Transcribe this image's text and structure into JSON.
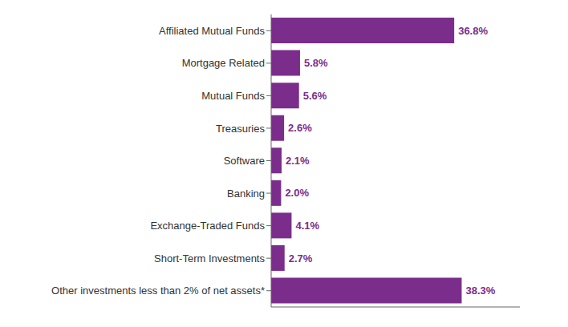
{
  "chart_data": {
    "type": "bar",
    "orientation": "horizontal",
    "categories": [
      "Other investments less than 2% of net assets*",
      "Short-Term Investments",
      "Exchange-Traded Funds",
      "Banking",
      "Software",
      "Treasuries",
      "Mutual Funds",
      "Mortgage Related",
      "Affiliated Mutual Funds"
    ],
    "values": [
      38.3,
      2.7,
      4.1,
      2.0,
      2.1,
      2.6,
      5.6,
      5.8,
      36.8
    ],
    "value_labels": [
      "38.3%",
      "2.7%",
      "4.1%",
      "2.0%",
      "2.1%",
      "2.6%",
      "5.6%",
      "5.8%",
      "36.8%"
    ],
    "data_labels": true,
    "color": "#7B2D8B",
    "xlim": [
      0,
      50
    ],
    "tick_labels": "y",
    "grid": false
  }
}
